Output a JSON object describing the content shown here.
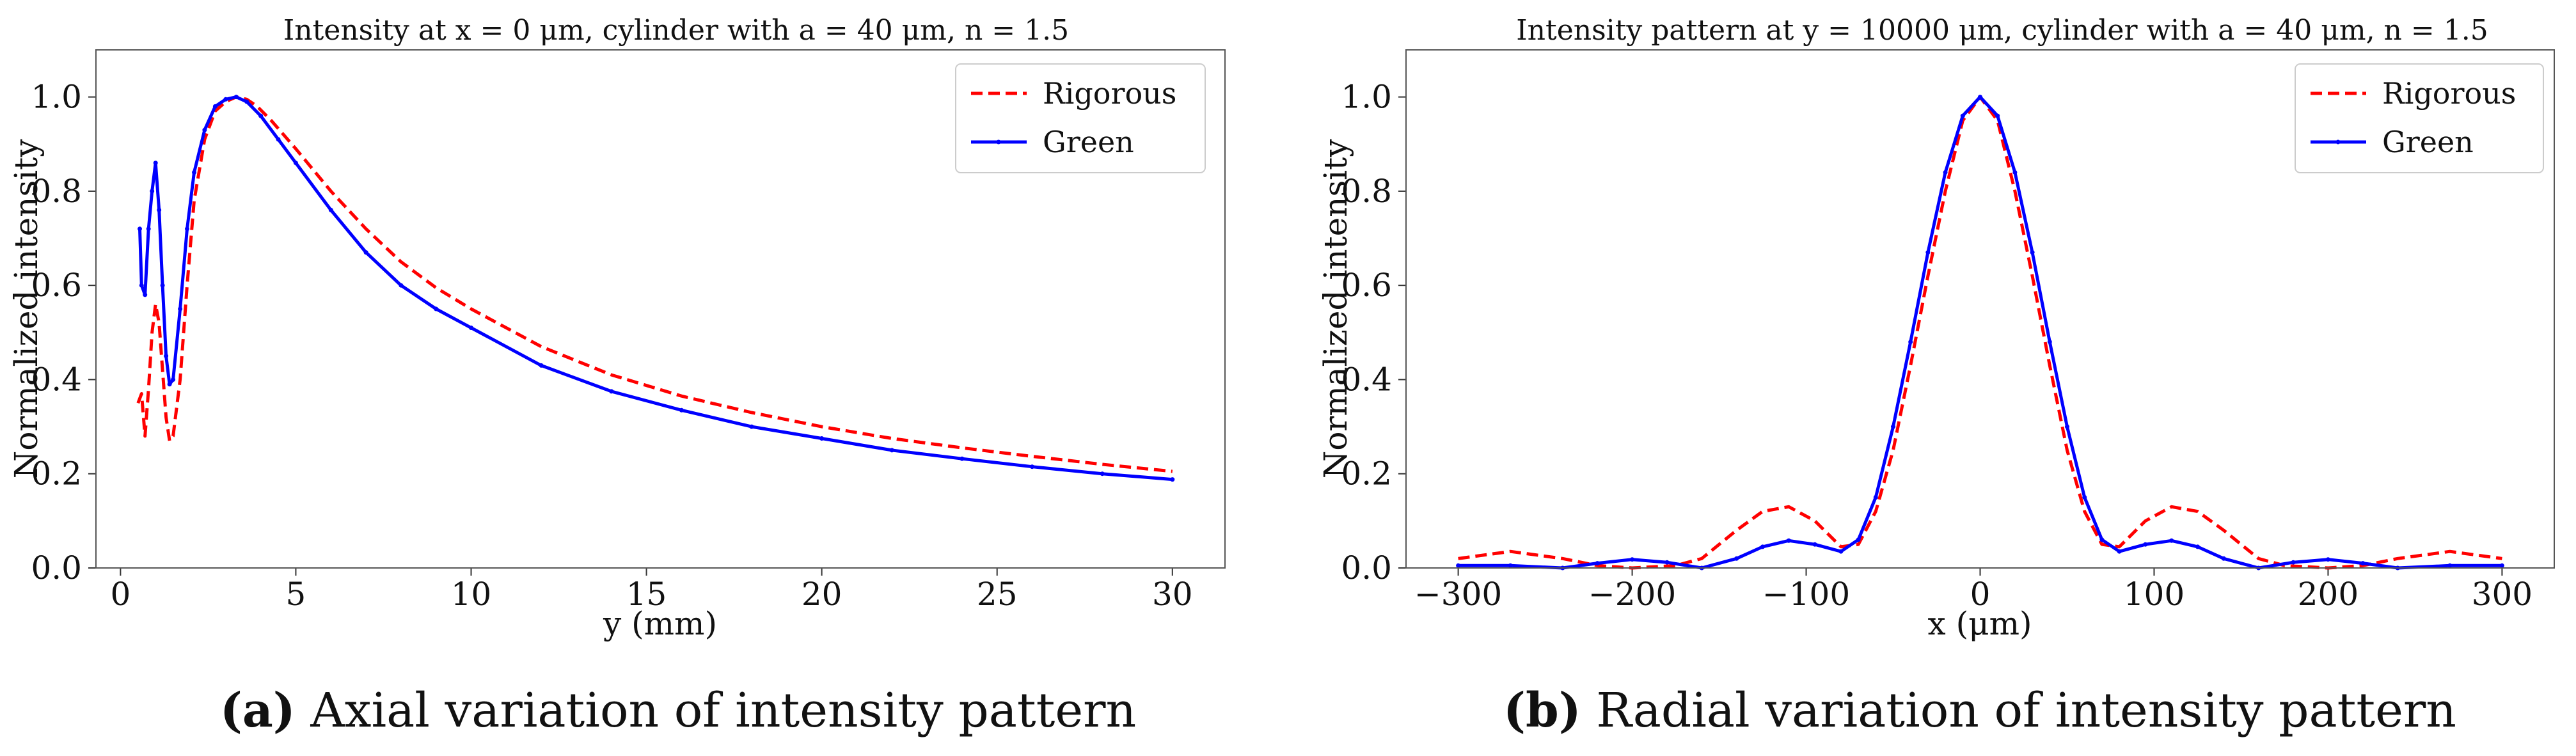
{
  "chart_data": [
    {
      "type": "line",
      "title": "Intensity at x = 0 μm, cylinder with a = 40 μm, n = 1.5",
      "xlabel": "y (mm)",
      "ylabel": "Normalized intensity",
      "xlim": [
        -0.7,
        31.5
      ],
      "ylim": [
        0.0,
        1.1
      ],
      "xticks": [
        0,
        5,
        10,
        15,
        20,
        25,
        30
      ],
      "yticks": [
        0.0,
        0.2,
        0.4,
        0.6,
        0.8,
        1.0
      ],
      "tick_labels_x": [
        "0",
        "5",
        "10",
        "15",
        "20",
        "25",
        "30"
      ],
      "tick_labels_y": [
        "0.0",
        "0.2",
        "0.4",
        "0.6",
        "0.8",
        "1.0"
      ],
      "legend": [
        "Rigorous",
        "Green"
      ],
      "legend_position": "top-right",
      "caption_label": "(a)",
      "caption_text": " Axial variation of intensity pattern",
      "series": [
        {
          "name": "Rigorous",
          "color": "#ff0000",
          "style": "dashed",
          "x": [
            0.5,
            0.6,
            0.7,
            0.8,
            0.9,
            1.0,
            1.1,
            1.2,
            1.3,
            1.4,
            1.5,
            1.7,
            1.9,
            2.1,
            2.4,
            2.7,
            3.0,
            3.3,
            3.6,
            3.9,
            4.3,
            5.0,
            6.0,
            7.0,
            8.0,
            9.0,
            10.0,
            12.0,
            14.0,
            16.0,
            18.0,
            20.0,
            22.0,
            24.0,
            26.0,
            28.0,
            30.0
          ],
          "y": [
            0.35,
            0.37,
            0.28,
            0.38,
            0.5,
            0.56,
            0.52,
            0.42,
            0.32,
            0.27,
            0.28,
            0.4,
            0.6,
            0.78,
            0.91,
            0.97,
            0.99,
            1.0,
            0.995,
            0.98,
            0.95,
            0.89,
            0.8,
            0.72,
            0.65,
            0.595,
            0.55,
            0.47,
            0.41,
            0.365,
            0.33,
            0.3,
            0.275,
            0.255,
            0.237,
            0.22,
            0.205
          ]
        },
        {
          "name": "Green",
          "color": "#0000ff",
          "style": "solid-dots",
          "x": [
            0.55,
            0.6,
            0.7,
            0.8,
            0.9,
            1.0,
            1.1,
            1.2,
            1.3,
            1.4,
            1.5,
            1.7,
            1.9,
            2.1,
            2.4,
            2.7,
            3.0,
            3.3,
            3.6,
            4.0,
            4.5,
            5.0,
            6.0,
            7.0,
            8.0,
            9.0,
            10.0,
            12.0,
            14.0,
            16.0,
            18.0,
            20.0,
            22.0,
            24.0,
            26.0,
            28.0,
            30.0
          ],
          "y": [
            0.72,
            0.6,
            0.58,
            0.72,
            0.8,
            0.86,
            0.76,
            0.6,
            0.45,
            0.39,
            0.4,
            0.55,
            0.72,
            0.84,
            0.93,
            0.98,
            0.995,
            1.0,
            0.99,
            0.96,
            0.91,
            0.86,
            0.76,
            0.67,
            0.6,
            0.55,
            0.51,
            0.43,
            0.375,
            0.335,
            0.3,
            0.275,
            0.25,
            0.232,
            0.215,
            0.2,
            0.188
          ]
        }
      ]
    },
    {
      "type": "line",
      "title": "Intensity pattern at y = 10000 μm, cylinder with a = 40 μm, n = 1.5",
      "xlabel": "x (μm)",
      "ylabel": "Normalized intensity",
      "xlim": [
        -330,
        330
      ],
      "ylim": [
        0.0,
        1.1
      ],
      "xticks": [
        -300,
        -200,
        -100,
        0,
        100,
        200,
        300
      ],
      "yticks": [
        0.0,
        0.2,
        0.4,
        0.6,
        0.8,
        1.0
      ],
      "tick_labels_x": [
        "−300",
        "−200",
        "−100",
        "0",
        "100",
        "200",
        "300"
      ],
      "tick_labels_y": [
        "0.0",
        "0.2",
        "0.4",
        "0.6",
        "0.8",
        "1.0"
      ],
      "legend": [
        "Rigorous",
        "Green"
      ],
      "legend_position": "top-right",
      "caption_label": "(b)",
      "caption_text": " Radial variation of intensity pattern",
      "series": [
        {
          "name": "Rigorous",
          "color": "#ff0000",
          "style": "dashed",
          "x": [
            -300,
            -270,
            -240,
            -220,
            -200,
            -175,
            -160,
            -140,
            -125,
            -110,
            -95,
            -80,
            -70,
            -60,
            -50,
            -40,
            -30,
            -20,
            -10,
            0,
            10,
            20,
            30,
            40,
            50,
            60,
            70,
            80,
            95,
            110,
            125,
            140,
            160,
            175,
            200,
            220,
            240,
            270,
            300
          ],
          "y": [
            0.02,
            0.035,
            0.02,
            0.005,
            0.0,
            0.005,
            0.02,
            0.08,
            0.12,
            0.13,
            0.1,
            0.045,
            0.05,
            0.12,
            0.25,
            0.43,
            0.62,
            0.8,
            0.95,
            1.0,
            0.95,
            0.8,
            0.62,
            0.43,
            0.25,
            0.12,
            0.05,
            0.045,
            0.1,
            0.13,
            0.12,
            0.08,
            0.02,
            0.005,
            0.0,
            0.005,
            0.02,
            0.035,
            0.02
          ]
        },
        {
          "name": "Green",
          "color": "#0000ff",
          "style": "solid-dots",
          "x": [
            -300,
            -270,
            -240,
            -220,
            -200,
            -180,
            -160,
            -140,
            -125,
            -110,
            -95,
            -80,
            -70,
            -60,
            -50,
            -40,
            -30,
            -20,
            -10,
            0,
            10,
            20,
            30,
            40,
            50,
            60,
            70,
            80,
            95,
            110,
            125,
            140,
            160,
            180,
            200,
            220,
            240,
            270,
            300
          ],
          "y": [
            0.005,
            0.005,
            0.0,
            0.01,
            0.018,
            0.012,
            0.0,
            0.02,
            0.045,
            0.058,
            0.05,
            0.035,
            0.06,
            0.15,
            0.3,
            0.48,
            0.67,
            0.84,
            0.96,
            1.0,
            0.96,
            0.84,
            0.67,
            0.48,
            0.3,
            0.15,
            0.06,
            0.035,
            0.05,
            0.058,
            0.045,
            0.02,
            0.0,
            0.012,
            0.018,
            0.01,
            0.0,
            0.005,
            0.005
          ]
        }
      ]
    }
  ]
}
